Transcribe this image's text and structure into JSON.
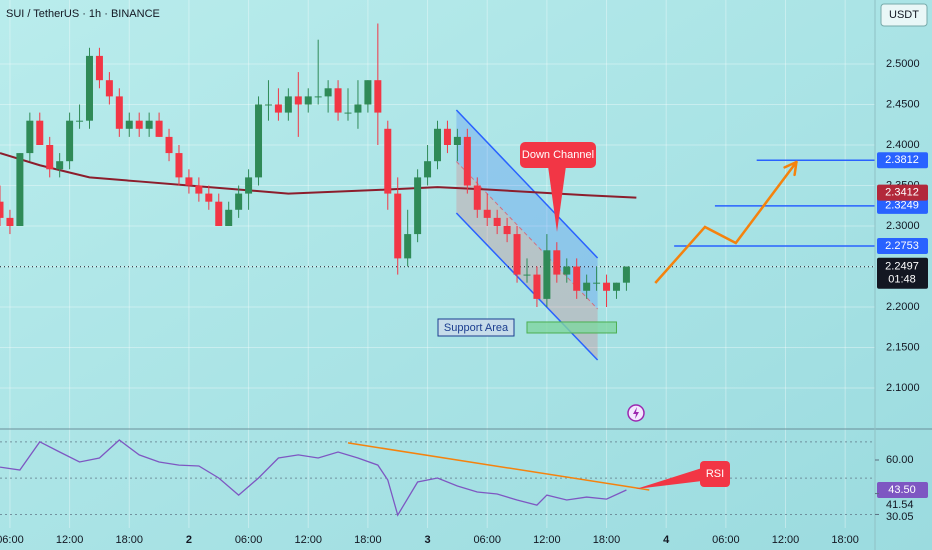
{
  "chart_data": [
    {
      "type": "candlestick",
      "title": "SUI / TetherUS · 1h · BINANCE",
      "currency": "USDT",
      "x": [
        -19,
        -18,
        -17,
        -16,
        -15,
        -14,
        -13,
        -12,
        -11,
        -10,
        -9,
        -8,
        -7,
        -6,
        -5,
        -4,
        -3,
        -2,
        -1,
        0,
        1,
        2,
        3,
        4,
        5,
        6,
        7,
        8,
        9,
        10,
        11,
        12,
        13,
        14,
        15,
        16,
        17,
        18,
        19,
        20,
        21,
        22,
        23,
        24,
        25,
        26,
        27,
        28,
        29,
        30,
        31,
        32,
        33,
        34,
        35,
        36,
        37,
        38,
        39,
        40,
        41,
        42,
        43,
        44
      ],
      "open": [
        2.33,
        2.31,
        2.3,
        2.39,
        2.43,
        2.4,
        2.37,
        2.38,
        2.43,
        2.43,
        2.51,
        2.48,
        2.46,
        2.42,
        2.43,
        2.42,
        2.43,
        2.41,
        2.39,
        2.36,
        2.35,
        2.34,
        2.33,
        2.3,
        2.32,
        2.34,
        2.36,
        2.45,
        2.45,
        2.44,
        2.46,
        2.45,
        2.46,
        2.46,
        2.47,
        2.44,
        2.44,
        2.45,
        2.48,
        2.42,
        2.34,
        2.26,
        2.29,
        2.36,
        2.38,
        2.42,
        2.4,
        2.41,
        2.35,
        2.32,
        2.31,
        2.3,
        2.29,
        2.24,
        2.24,
        2.21,
        2.27,
        2.24,
        2.25,
        2.22,
        2.23,
        2.23,
        2.22,
        2.23
      ],
      "high": [
        2.35,
        2.32,
        2.39,
        2.44,
        2.44,
        2.41,
        2.39,
        2.44,
        2.45,
        2.52,
        2.52,
        2.49,
        2.47,
        2.44,
        2.44,
        2.44,
        2.44,
        2.42,
        2.4,
        2.37,
        2.36,
        2.35,
        2.34,
        2.33,
        2.35,
        2.37,
        2.46,
        2.48,
        2.47,
        2.47,
        2.49,
        2.47,
        2.53,
        2.48,
        2.48,
        2.47,
        2.48,
        2.48,
        2.55,
        2.43,
        2.36,
        2.32,
        2.37,
        2.4,
        2.43,
        2.43,
        2.42,
        2.42,
        2.36,
        2.34,
        2.32,
        2.31,
        2.3,
        2.26,
        2.25,
        2.29,
        2.28,
        2.26,
        2.26,
        2.24,
        2.25,
        2.24,
        2.23,
        2.25
      ],
      "low": [
        2.3,
        2.29,
        2.3,
        2.38,
        2.4,
        2.36,
        2.36,
        2.37,
        2.42,
        2.42,
        2.47,
        2.45,
        2.41,
        2.41,
        2.41,
        2.41,
        2.41,
        2.38,
        2.35,
        2.34,
        2.33,
        2.32,
        2.3,
        2.3,
        2.31,
        2.32,
        2.35,
        2.43,
        2.43,
        2.43,
        2.41,
        2.44,
        2.45,
        2.44,
        2.43,
        2.43,
        2.42,
        2.44,
        2.4,
        2.32,
        2.24,
        2.25,
        2.28,
        2.35,
        2.37,
        2.39,
        2.38,
        2.34,
        2.31,
        2.3,
        2.29,
        2.28,
        2.23,
        2.23,
        2.2,
        2.2,
        2.23,
        2.23,
        2.21,
        2.21,
        2.22,
        2.2,
        2.21,
        2.22
      ],
      "close": [
        2.31,
        2.3,
        2.39,
        2.43,
        2.4,
        2.37,
        2.38,
        2.43,
        2.43,
        2.51,
        2.48,
        2.46,
        2.42,
        2.43,
        2.42,
        2.43,
        2.41,
        2.39,
        2.36,
        2.35,
        2.34,
        2.33,
        2.3,
        2.32,
        2.34,
        2.36,
        2.45,
        2.45,
        2.44,
        2.46,
        2.45,
        2.46,
        2.46,
        2.47,
        2.44,
        2.44,
        2.45,
        2.48,
        2.44,
        2.34,
        2.26,
        2.29,
        2.36,
        2.38,
        2.42,
        2.4,
        2.41,
        2.35,
        2.32,
        2.31,
        2.3,
        2.29,
        2.24,
        2.24,
        2.21,
        2.27,
        2.24,
        2.25,
        2.22,
        2.23,
        2.23,
        2.22,
        2.23,
        2.25
      ],
      "up_color": "#2f8a57",
      "down_color": "#f23645",
      "ma": {
        "color": "#8c1d2c",
        "x": [
          -19,
          -15,
          -10,
          -5,
          0,
          10,
          20,
          25,
          30,
          40,
          45
        ],
        "values": [
          2.39,
          2.375,
          2.36,
          2.355,
          2.35,
          2.34,
          2.345,
          2.348,
          2.345,
          2.338,
          2.335
        ]
      },
      "xlim": [
        -19,
        69
      ],
      "ylim": [
        2.0506,
        2.579
      ],
      "yticks": [
        {
          "value": 2.1,
          "label": "2.1000"
        },
        {
          "value": 2.15,
          "label": "2.1500"
        },
        {
          "value": 2.2,
          "label": "2.2000"
        },
        {
          "value": 2.25,
          "label": "2.2500"
        },
        {
          "value": 2.3,
          "label": "2.3000"
        },
        {
          "value": 2.35,
          "label": "2.3500"
        },
        {
          "value": 2.4,
          "label": "2.4000"
        },
        {
          "value": 2.45,
          "label": "2.4500"
        },
        {
          "value": 2.5,
          "label": "2.5000"
        }
      ],
      "last": {
        "value": 2.2497,
        "label": "2.2497",
        "countdown": "01:48"
      },
      "ma_last": {
        "value": 2.3412,
        "label": "2.3412"
      },
      "levels": [
        {
          "value": 2.3812,
          "label": "2.3812",
          "from": 57.1,
          "color": "#2962ff"
        },
        {
          "value": 2.3249,
          "label": "2.3249",
          "from": 52.9,
          "color": "#2962ff"
        },
        {
          "value": 2.2753,
          "label": "2.2753",
          "from": 48.8,
          "color": "#2962ff"
        }
      ],
      "channel": {
        "label": "Down Channel",
        "x": [
          26.9,
          41.1
        ],
        "upper": [
          2.4432,
          2.2605
        ],
        "lower": [
          2.316,
          2.1346
        ]
      },
      "support": {
        "label": "Support Area",
        "x": [
          34,
          43
        ],
        "y": [
          2.1679,
          2.1815
        ],
        "color": "#7fd6a0"
      },
      "projection": {
        "color": "#f5820d",
        "x": [
          46.9,
          51.9,
          55.0,
          61.1
        ],
        "y": [
          2.2296,
          2.2988,
          2.279,
          2.379
        ]
      }
    },
    {
      "type": "line",
      "name": "RSI",
      "color": "#7e57c2",
      "x": [
        -19,
        -17,
        -15,
        -13,
        -11,
        -9,
        -7,
        -5,
        -3,
        -1,
        1,
        3,
        5,
        7,
        9,
        11,
        13,
        15,
        17,
        19,
        20,
        21,
        23,
        25,
        27,
        29,
        31,
        33,
        35,
        36,
        38,
        40,
        42,
        44
      ],
      "values": [
        56.1,
        54.5,
        70,
        64.4,
        58.9,
        61.1,
        71,
        62.8,
        58.9,
        57.2,
        56.7,
        50.1,
        40.7,
        50.1,
        61.1,
        62.8,
        61.1,
        64.4,
        61.1,
        57.2,
        49,
        29.7,
        47.9,
        50.1,
        45.7,
        42.4,
        41.3,
        38,
        35.2,
        40.7,
        38,
        39.6,
        38.5,
        43.5
      ],
      "bands": [
        70,
        50,
        30
      ],
      "xlim": [
        -19,
        69
      ],
      "ylim": [
        21.5,
        76.5
      ],
      "yticks": [
        {
          "value": 60,
          "label": "60.00"
        },
        {
          "value": 41.54,
          "label": "41.54"
        },
        {
          "value": 30.05,
          "label": "30.05"
        }
      ],
      "last": {
        "value": 43.5,
        "label": "43.50"
      },
      "trendline": {
        "color": "#f5820d",
        "x": [
          16,
          46.3
        ],
        "y": [
          69.4,
          43.5
        ]
      },
      "xticks": [
        {
          "value": -18,
          "label": "06:00"
        },
        {
          "value": -12,
          "label": "12:00"
        },
        {
          "value": -6,
          "label": "18:00"
        },
        {
          "value": 0,
          "label": "2"
        },
        {
          "value": 6,
          "label": "06:00"
        },
        {
          "value": 12,
          "label": "12:00"
        },
        {
          "value": 18,
          "label": "18:00"
        },
        {
          "value": 24,
          "label": "3"
        },
        {
          "value": 30,
          "label": "06:00"
        },
        {
          "value": 36,
          "label": "12:00"
        },
        {
          "value": 42,
          "label": "18:00"
        },
        {
          "value": 48,
          "label": "4"
        },
        {
          "value": 54,
          "label": "06:00"
        },
        {
          "value": 60,
          "label": "12:00"
        },
        {
          "value": 66,
          "label": "18:00"
        }
      ]
    }
  ]
}
